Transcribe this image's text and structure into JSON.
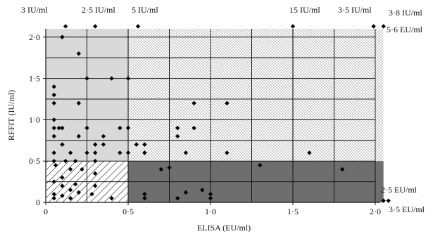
{
  "chart_data": {
    "type": "scatter",
    "xlabel": "ELISA (EU/ml)",
    "ylabel": "RFFIT (IU/ml)",
    "xlim": [
      0,
      2.0
    ],
    "ylim": [
      0,
      2.1
    ],
    "xticks": [
      0,
      0.5,
      1.0,
      1.5,
      2.0
    ],
    "xtick_labels": [
      "0",
      "0·5",
      "1·0",
      "1·5",
      "2·0"
    ],
    "yticks": [
      0,
      0.5,
      1.0,
      1.5,
      2.0
    ],
    "ytick_labels": [
      "0",
      "0·5",
      "1·0",
      "1·5",
      "2·0"
    ],
    "grid": true,
    "grid_step": 0.25,
    "regions": [
      {
        "name": "light-grey",
        "x0": 0,
        "x1": 0.5,
        "y0": 0.5,
        "y1": 2.1,
        "fill": "#d9d9d9"
      },
      {
        "name": "dotted",
        "x0": 0.5,
        "x1": 2.0,
        "y0": 0.5,
        "y1": 2.1,
        "fill": "dots"
      },
      {
        "name": "dotted-right",
        "x0": 2.0,
        "x1": 2.05,
        "y0": 0.5,
        "y1": 2.1,
        "fill": "dots"
      },
      {
        "name": "hatched",
        "x0": 0,
        "x1": 0.5,
        "y0": 0,
        "y1": 0.5,
        "fill": "hatch"
      },
      {
        "name": "dark-grey",
        "x0": 0.5,
        "x1": 2.05,
        "y0": 0,
        "y1": 0.5,
        "fill": "#6e6e6e"
      }
    ],
    "annotations": [
      {
        "text": "3 IU/ml",
        "at": "top"
      },
      {
        "text": "2·5 IU/ml",
        "at": "top"
      },
      {
        "text": "5 IU/ml",
        "at": "top"
      },
      {
        "text": "15 IU/ml",
        "at": "top"
      },
      {
        "text": "3·5 IU/ml",
        "at": "top"
      },
      {
        "text": "3·8 IU/ml",
        "at": "top-right"
      },
      {
        "text": "5·6 EU/ml",
        "at": "right"
      },
      {
        "text": "2·5 EU/ml",
        "at": "right"
      },
      {
        "text": "3·5 EU/ml",
        "at": "right"
      }
    ],
    "points": [
      [
        0.12,
        2.13
      ],
      [
        0.3,
        2.13
      ],
      [
        0.56,
        2.13
      ],
      [
        1.5,
        2.13
      ],
      [
        1.99,
        2.13
      ],
      [
        2.05,
        2.13
      ],
      [
        0.1,
        2.0
      ],
      [
        0.2,
        1.8
      ],
      [
        0.05,
        1.4
      ],
      [
        0.25,
        1.5
      ],
      [
        0.4,
        1.5
      ],
      [
        0.5,
        1.5
      ],
      [
        0.05,
        1.3
      ],
      [
        0.05,
        1.2
      ],
      [
        0.2,
        1.2
      ],
      [
        0.05,
        1.0
      ],
      [
        0.05,
        0.9
      ],
      [
        0.08,
        0.9
      ],
      [
        0.1,
        0.9
      ],
      [
        0.25,
        0.9
      ],
      [
        0.45,
        0.9
      ],
      [
        0.5,
        0.9
      ],
      [
        0.05,
        0.8
      ],
      [
        0.2,
        0.8
      ],
      [
        0.35,
        0.8
      ],
      [
        0.1,
        0.7
      ],
      [
        0.3,
        0.7
      ],
      [
        0.35,
        0.7
      ],
      [
        0.55,
        0.7
      ],
      [
        0.05,
        0.6
      ],
      [
        0.15,
        0.6
      ],
      [
        0.25,
        0.6
      ],
      [
        0.3,
        0.6
      ],
      [
        0.45,
        0.6
      ],
      [
        0.5,
        0.6
      ],
      [
        0.9,
        1.2
      ],
      [
        1.1,
        1.2
      ],
      [
        0.8,
        0.9
      ],
      [
        0.9,
        0.9
      ],
      [
        0.8,
        0.8
      ],
      [
        0.6,
        0.7
      ],
      [
        0.6,
        0.6
      ],
      [
        0.85,
        0.6
      ],
      [
        1.1,
        0.6
      ],
      [
        1.6,
        0.6
      ],
      [
        0.05,
        0.5
      ],
      [
        0.12,
        0.5
      ],
      [
        0.18,
        0.5
      ],
      [
        0.3,
        0.5
      ],
      [
        0.06,
        0.45
      ],
      [
        0.15,
        0.4
      ],
      [
        0.22,
        0.4
      ],
      [
        0.3,
        0.35
      ],
      [
        0.1,
        0.3
      ],
      [
        0.05,
        0.25
      ],
      [
        0.1,
        0.2
      ],
      [
        0.18,
        0.22
      ],
      [
        0.3,
        0.2
      ],
      [
        0.15,
        0.15
      ],
      [
        0.05,
        0.1
      ],
      [
        0.1,
        0.08
      ],
      [
        0.2,
        0.12
      ],
      [
        0.28,
        0.1
      ],
      [
        0.05,
        0.05
      ],
      [
        0.15,
        0.05
      ],
      [
        0.4,
        0.05
      ],
      [
        0.7,
        0.4
      ],
      [
        0.75,
        0.42
      ],
      [
        1.3,
        0.45
      ],
      [
        1.8,
        0.4
      ],
      [
        0.95,
        0.15
      ],
      [
        1.0,
        0.1
      ],
      [
        0.85,
        0.12
      ],
      [
        0.6,
        0.1
      ],
      [
        0.6,
        0.05
      ],
      [
        0.8,
        0.05
      ],
      [
        1.0,
        0.05
      ],
      [
        2.05,
        0.02
      ],
      [
        2.08,
        0.02
      ]
    ]
  }
}
